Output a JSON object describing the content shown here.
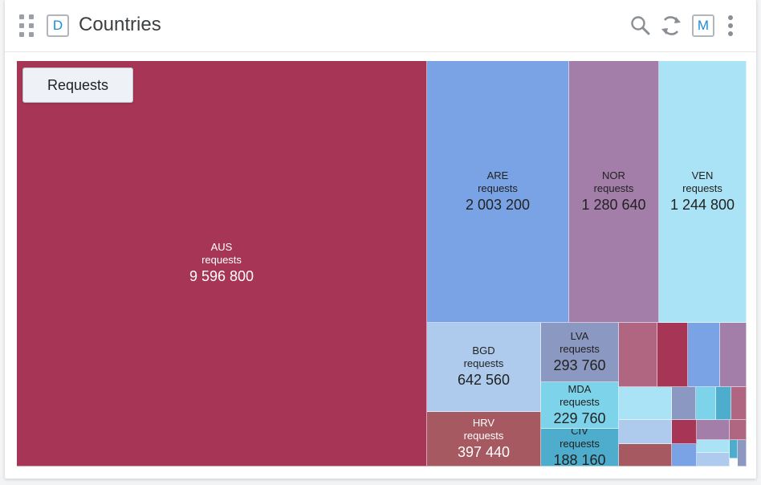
{
  "header": {
    "badge_left": "D",
    "title": "Countries",
    "badge_right": "M",
    "icons": [
      "drag-handle-icon",
      "search-icon",
      "refresh-icon",
      "more-vertical-icon"
    ]
  },
  "measure_button": {
    "label": "Requests"
  },
  "treemap": {
    "cells": [
      {
        "code": "AUS",
        "measure": "requests",
        "value": "9 596 800",
        "color": "#a63556",
        "text": "light"
      },
      {
        "code": "ARE",
        "measure": "requests",
        "value": "2 003 200",
        "color": "#7aa3e5",
        "text": "dark"
      },
      {
        "code": "NOR",
        "measure": "requests",
        "value": "1 280 640",
        "color": "#a27ea8",
        "text": "dark"
      },
      {
        "code": "VEN",
        "measure": "requests",
        "value": "1 244 800",
        "color": "#aae3f5",
        "text": "dark"
      },
      {
        "code": "BGD",
        "measure": "requests",
        "value": "642 560",
        "color": "#aecbed",
        "text": "dark"
      },
      {
        "code": "HRV",
        "measure": "requests",
        "value": "397 440",
        "color": "#a65961",
        "text": "light"
      },
      {
        "code": "LVA",
        "measure": "requests",
        "value": "293 760",
        "color": "#8a98c2",
        "text": "dark"
      },
      {
        "code": "MDA",
        "measure": "requests",
        "value": "229 760",
        "color": "#7dd3ea",
        "text": "dark"
      },
      {
        "code": "CIV",
        "measure": "requests",
        "value": "188 160",
        "color": "#4eaccd",
        "text": "dark"
      }
    ],
    "small_cell_colors": [
      "#b06680",
      "#a63556",
      "#7aa3e5",
      "#a27ea8",
      "#aae3f5",
      "#8a98c2",
      "#7dd3ea",
      "#4eaccd",
      "#b06680",
      "#aecbed",
      "#a63556",
      "#a27ea8",
      "#b06680",
      "#a65961",
      "#7aa3e5",
      "#aae3f5",
      "#4eaccd",
      "#aecbed",
      "#8a98c2"
    ]
  }
}
